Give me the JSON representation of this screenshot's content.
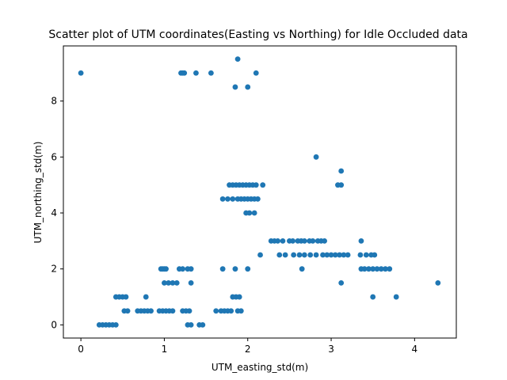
{
  "chart_data": {
    "type": "scatter",
    "title": "Scatter plot of UTM coordinates(Easting vs Northing) for Idle Occluded data",
    "xlabel": "UTM_easting_std(m)",
    "ylabel": "UTM_northing_std(m)",
    "xlim": [
      -0.21,
      4.5
    ],
    "ylim": [
      -0.47,
      9.97
    ],
    "x_ticks": [
      0,
      1,
      2,
      3,
      4
    ],
    "y_ticks": [
      0,
      2,
      4,
      6,
      8
    ],
    "grid": false,
    "marker_color": "#1f77b4",
    "points": [
      [
        0.0,
        9.0
      ],
      [
        1.2,
        9.0
      ],
      [
        1.22,
        9.0
      ],
      [
        1.24,
        9.0
      ],
      [
        1.38,
        9.0
      ],
      [
        1.56,
        9.0
      ],
      [
        2.1,
        9.0
      ],
      [
        1.88,
        9.5
      ],
      [
        1.85,
        8.5
      ],
      [
        2.0,
        8.5
      ],
      [
        2.82,
        6.0
      ],
      [
        3.12,
        5.5
      ],
      [
        3.08,
        5.0
      ],
      [
        3.12,
        5.0
      ],
      [
        1.78,
        5.0
      ],
      [
        1.82,
        5.0
      ],
      [
        1.86,
        5.0
      ],
      [
        1.9,
        5.0
      ],
      [
        1.94,
        5.0
      ],
      [
        1.98,
        5.0
      ],
      [
        2.02,
        5.0
      ],
      [
        2.06,
        5.0
      ],
      [
        2.1,
        5.0
      ],
      [
        2.18,
        5.0
      ],
      [
        1.7,
        4.5
      ],
      [
        1.76,
        4.5
      ],
      [
        1.82,
        4.5
      ],
      [
        1.88,
        4.5
      ],
      [
        1.92,
        4.5
      ],
      [
        1.96,
        4.5
      ],
      [
        2.0,
        4.5
      ],
      [
        2.04,
        4.5
      ],
      [
        2.08,
        4.5
      ],
      [
        2.12,
        4.5
      ],
      [
        1.98,
        4.0
      ],
      [
        2.02,
        4.0
      ],
      [
        2.08,
        4.0
      ],
      [
        2.28,
        3.0
      ],
      [
        2.32,
        3.0
      ],
      [
        2.36,
        3.0
      ],
      [
        2.42,
        3.0
      ],
      [
        2.5,
        3.0
      ],
      [
        2.54,
        3.0
      ],
      [
        2.6,
        3.0
      ],
      [
        2.64,
        3.0
      ],
      [
        2.68,
        3.0
      ],
      [
        2.74,
        3.0
      ],
      [
        2.78,
        3.0
      ],
      [
        2.84,
        3.0
      ],
      [
        2.88,
        3.0
      ],
      [
        2.92,
        3.0
      ],
      [
        3.36,
        3.0
      ],
      [
        2.15,
        2.5
      ],
      [
        2.38,
        2.5
      ],
      [
        2.45,
        2.5
      ],
      [
        2.55,
        2.5
      ],
      [
        2.62,
        2.5
      ],
      [
        2.68,
        2.5
      ],
      [
        2.75,
        2.5
      ],
      [
        2.82,
        2.5
      ],
      [
        2.9,
        2.5
      ],
      [
        2.95,
        2.5
      ],
      [
        3.0,
        2.5
      ],
      [
        3.05,
        2.5
      ],
      [
        3.1,
        2.5
      ],
      [
        3.15,
        2.5
      ],
      [
        3.2,
        2.5
      ],
      [
        3.35,
        2.5
      ],
      [
        3.42,
        2.5
      ],
      [
        3.48,
        2.5
      ],
      [
        3.52,
        2.5
      ],
      [
        0.96,
        2.0
      ],
      [
        0.98,
        2.0
      ],
      [
        1.0,
        2.0
      ],
      [
        1.02,
        2.0
      ],
      [
        1.18,
        2.0
      ],
      [
        1.22,
        2.0
      ],
      [
        1.28,
        2.0
      ],
      [
        1.32,
        2.0
      ],
      [
        1.7,
        2.0
      ],
      [
        1.85,
        2.0
      ],
      [
        2.0,
        2.0
      ],
      [
        2.65,
        2.0
      ],
      [
        3.36,
        2.0
      ],
      [
        3.4,
        2.0
      ],
      [
        3.45,
        2.0
      ],
      [
        3.5,
        2.0
      ],
      [
        3.55,
        2.0
      ],
      [
        3.6,
        2.0
      ],
      [
        3.65,
        2.0
      ],
      [
        3.7,
        2.0
      ],
      [
        1.0,
        1.5
      ],
      [
        1.05,
        1.5
      ],
      [
        1.1,
        1.5
      ],
      [
        1.15,
        1.5
      ],
      [
        1.32,
        1.5
      ],
      [
        3.12,
        1.5
      ],
      [
        4.28,
        1.5
      ],
      [
        0.42,
        1.0
      ],
      [
        0.46,
        1.0
      ],
      [
        0.5,
        1.0
      ],
      [
        0.54,
        1.0
      ],
      [
        0.78,
        1.0
      ],
      [
        1.82,
        1.0
      ],
      [
        1.86,
        1.0
      ],
      [
        1.9,
        1.0
      ],
      [
        3.5,
        1.0
      ],
      [
        3.78,
        1.0
      ],
      [
        0.52,
        0.5
      ],
      [
        0.56,
        0.5
      ],
      [
        0.68,
        0.5
      ],
      [
        0.72,
        0.5
      ],
      [
        0.76,
        0.5
      ],
      [
        0.8,
        0.5
      ],
      [
        0.84,
        0.5
      ],
      [
        0.94,
        0.5
      ],
      [
        0.98,
        0.5
      ],
      [
        1.02,
        0.5
      ],
      [
        1.06,
        0.5
      ],
      [
        1.1,
        0.5
      ],
      [
        1.22,
        0.5
      ],
      [
        1.26,
        0.5
      ],
      [
        1.3,
        0.5
      ],
      [
        1.62,
        0.5
      ],
      [
        1.68,
        0.5
      ],
      [
        1.72,
        0.5
      ],
      [
        1.76,
        0.5
      ],
      [
        1.8,
        0.5
      ],
      [
        1.88,
        0.5
      ],
      [
        1.92,
        0.5
      ],
      [
        0.22,
        0.0
      ],
      [
        0.26,
        0.0
      ],
      [
        0.3,
        0.0
      ],
      [
        0.34,
        0.0
      ],
      [
        0.38,
        0.0
      ],
      [
        0.42,
        0.0
      ],
      [
        1.28,
        0.0
      ],
      [
        1.32,
        0.0
      ],
      [
        1.42,
        0.0
      ],
      [
        1.46,
        0.0
      ]
    ]
  }
}
